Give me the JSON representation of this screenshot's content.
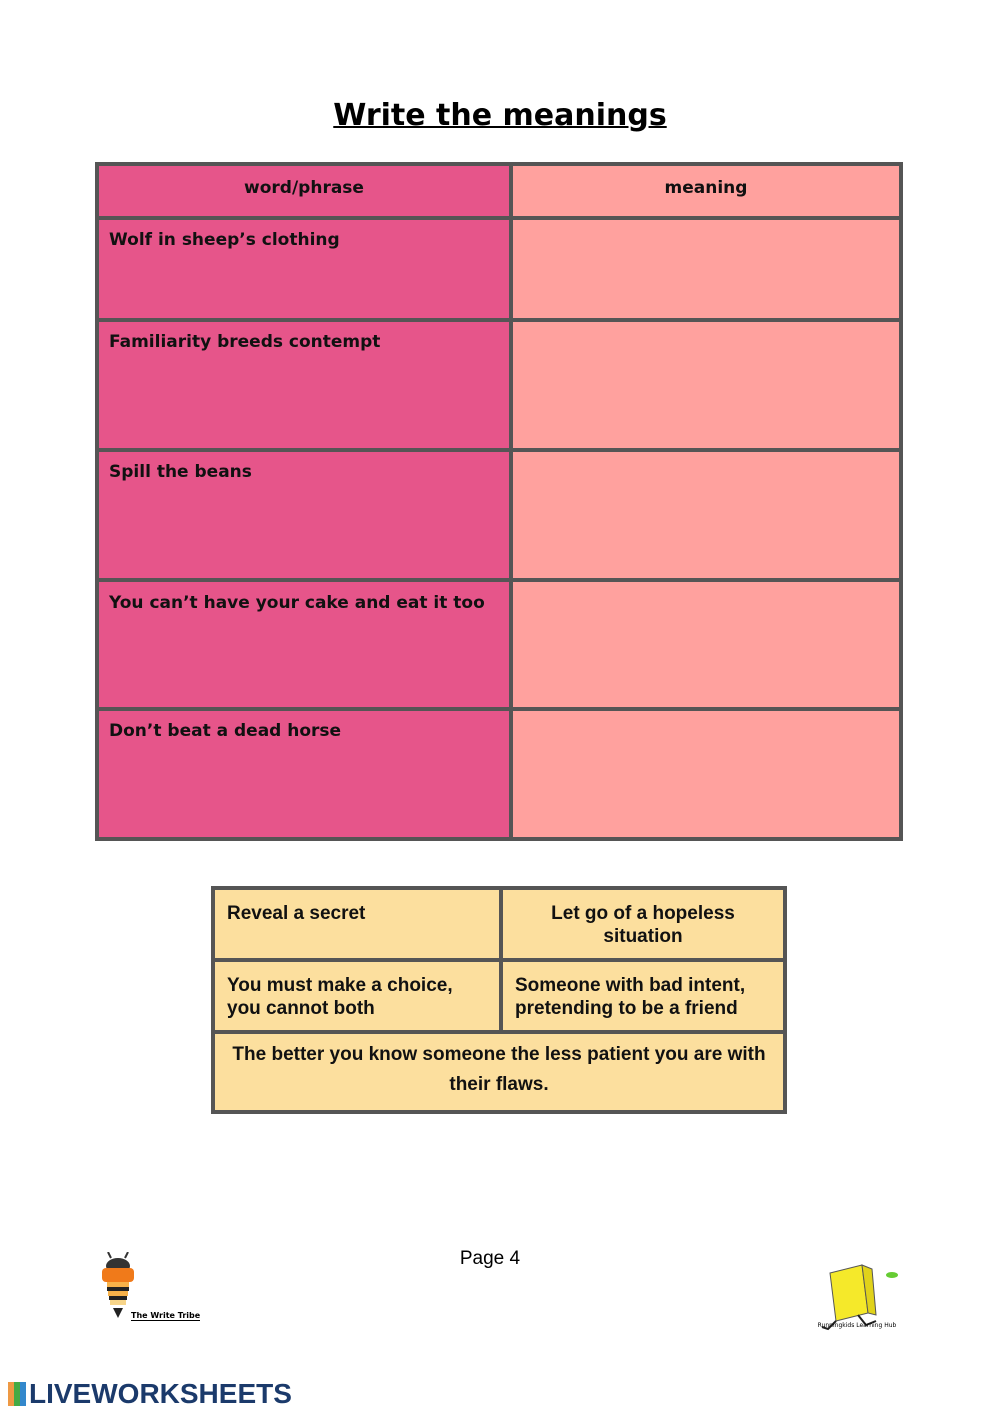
{
  "title": "Write the meanings",
  "table": {
    "headers": [
      "word/phrase",
      "meaning"
    ],
    "rows": [
      {
        "phrase": "Wolf in sheep’s clothing",
        "meaning": ""
      },
      {
        "phrase": "Familiarity breeds contempt",
        "meaning": ""
      },
      {
        "phrase": "Spill the beans",
        "meaning": ""
      },
      {
        "phrase": "You can’t have your cake and eat it too",
        "meaning": ""
      },
      {
        "phrase": "Don’t beat a dead horse",
        "meaning": ""
      }
    ]
  },
  "word_bank": [
    "Reveal a secret",
    "Let go of a hopeless situation",
    "You must make a choice, you cannot both",
    "Someone with bad intent, pretending to be a friend",
    "The better you know someone the less patient you are with their flaws."
  ],
  "footer": {
    "page": "Page 4",
    "left_logo": "The Write Tribe",
    "right_logo": "Runningkids Learning Hub",
    "brand": "LIVEWORKSHEETS"
  },
  "colors": {
    "phrase_col": "#E6558A",
    "meaning_col": "#FFA19E",
    "word_bank": "#FCDF9E",
    "border": "#555555"
  }
}
